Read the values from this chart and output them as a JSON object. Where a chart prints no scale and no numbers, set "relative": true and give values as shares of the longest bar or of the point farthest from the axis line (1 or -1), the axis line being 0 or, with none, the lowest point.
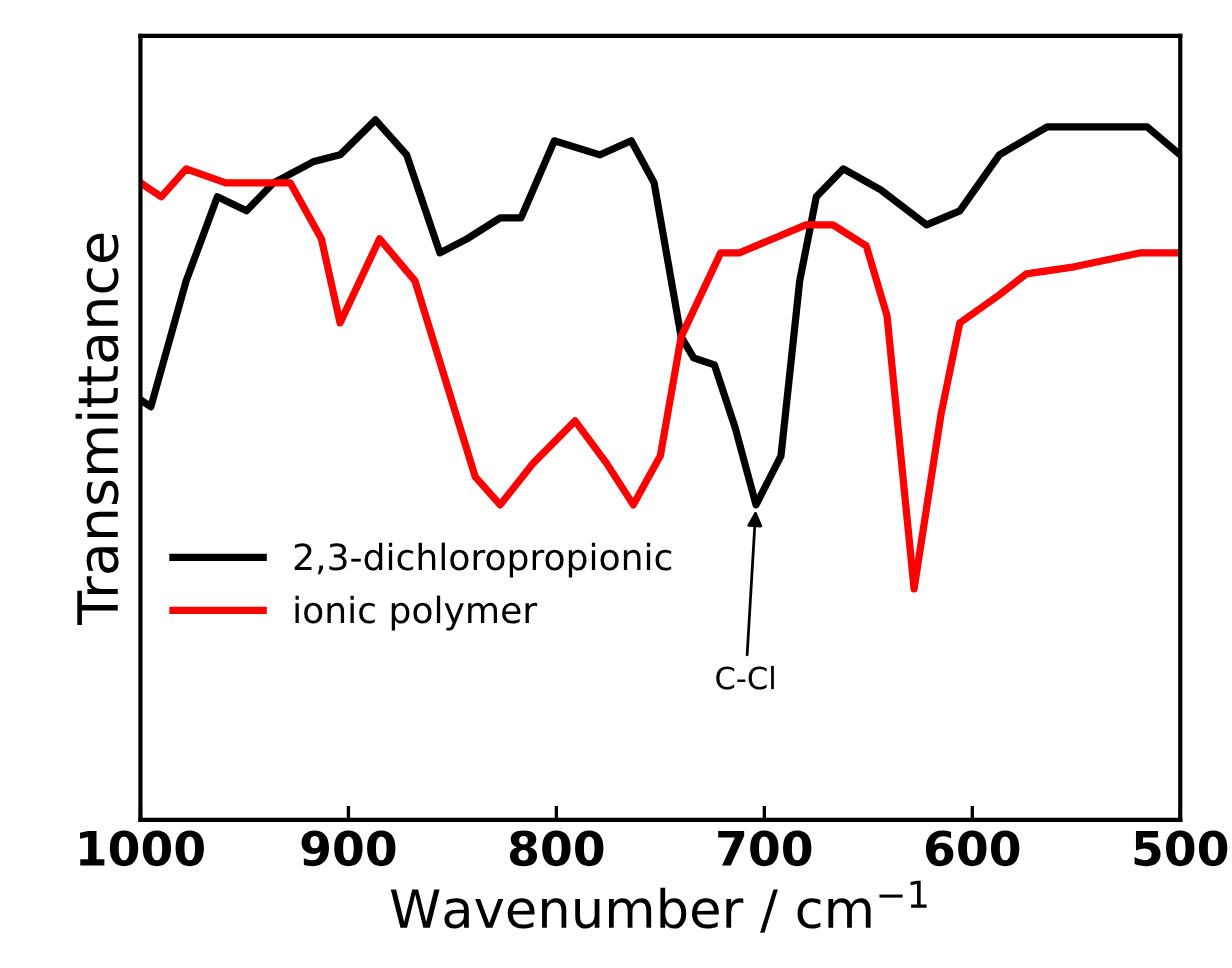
{
  "chart_data": {
    "type": "line",
    "relative": true,
    "xlabel": "Wavenumber / cm$^{−1}$",
    "ylabel": "Transmittance",
    "xlim": [
      1000,
      500
    ],
    "xticks": [
      1000,
      900,
      800,
      700,
      600,
      500
    ],
    "legend": "bottom left",
    "grid": false,
    "tick_labels": "x",
    "series": [
      {
        "name": "2,3-dichloropropionic",
        "color": "#000000",
        "x": [
          1000,
          995,
          978,
          963,
          949,
          936,
          917,
          904,
          887,
          872,
          856,
          843,
          827,
          817,
          801,
          779,
          764,
          753,
          740,
          734,
          724,
          714,
          704,
          692,
          683,
          675,
          662,
          644,
          622,
          606,
          587,
          564,
          516,
          500
        ],
        "values": [
          0.6,
          0.59,
          0.77,
          0.89,
          0.87,
          0.91,
          0.94,
          0.95,
          1.0,
          0.95,
          0.81,
          0.83,
          0.86,
          0.86,
          0.97,
          0.95,
          0.97,
          0.91,
          0.69,
          0.66,
          0.65,
          0.56,
          0.45,
          0.52,
          0.77,
          0.89,
          0.93,
          0.9,
          0.85,
          0.87,
          0.95,
          0.99,
          0.99,
          0.95
        ]
      },
      {
        "name": "ionic polymer",
        "color": "#ff0000",
        "x": [
          1000,
          990,
          978,
          959,
          945,
          928,
          913,
          904,
          885,
          868,
          839,
          827,
          811,
          791,
          776,
          763,
          750,
          740,
          721,
          712,
          680,
          667,
          651,
          641,
          628,
          615,
          606,
          587,
          574,
          551,
          519,
          500
        ],
        "values": [
          0.91,
          0.89,
          0.93,
          0.91,
          0.91,
          0.91,
          0.83,
          0.71,
          0.83,
          0.77,
          0.49,
          0.45,
          0.51,
          0.57,
          0.51,
          0.45,
          0.52,
          0.69,
          0.81,
          0.81,
          0.85,
          0.85,
          0.82,
          0.72,
          0.33,
          0.58,
          0.71,
          0.75,
          0.78,
          0.79,
          0.81,
          0.81
        ]
      }
    ],
    "annotations": [
      {
        "text": "C-Cl",
        "x": 704,
        "y": 0.45
      }
    ]
  }
}
